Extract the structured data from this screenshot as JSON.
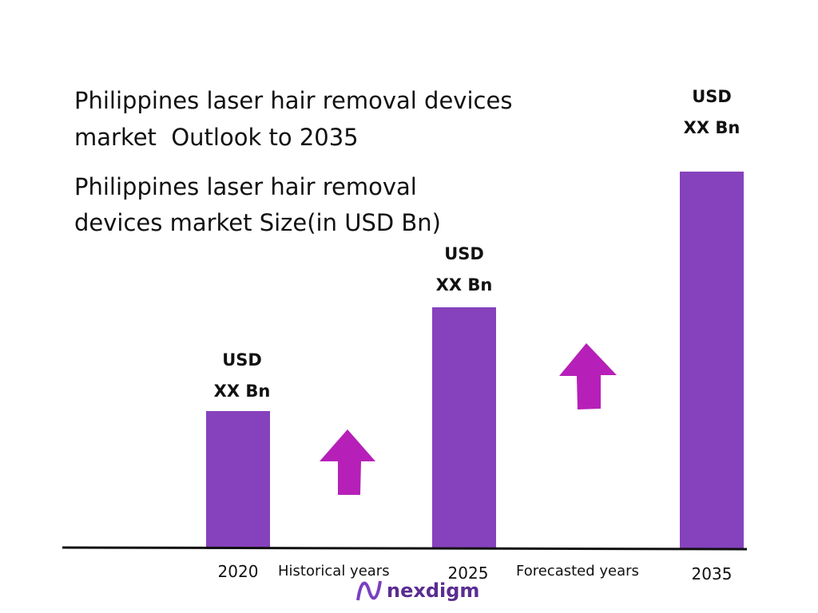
{
  "header": {
    "title_lines": [
      "Philippines laser hair removal devices",
      "market  Outlook to 2035"
    ],
    "subtitle_lines": [
      "Philippines laser hair removal",
      "devices market Size(in USD Bn)"
    ]
  },
  "bars": [
    {
      "label": "2020",
      "value_label": [
        "USD",
        "XX Bn"
      ]
    },
    {
      "label": "2025",
      "value_label": [
        "USD",
        "XX Bn"
      ]
    },
    {
      "label": "2035",
      "value_label": [
        "USD",
        "XX Bn"
      ]
    }
  ],
  "annotations": [
    "Historical years",
    "Forecasted years"
  ],
  "footer": {
    "logo": "nexdigm"
  }
}
